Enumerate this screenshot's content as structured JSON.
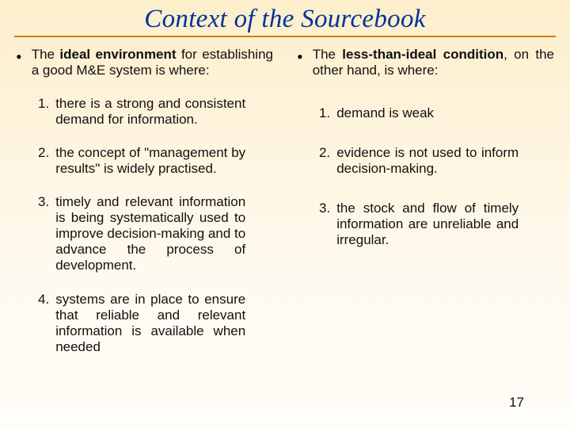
{
  "title": "Context of the Sourcebook",
  "pageNumber": "17",
  "left": {
    "lead_pre": "The ",
    "lead_bold": "ideal environment",
    "lead_post": " for establishing a good M&E system is where:",
    "items": [
      {
        "n": "1.",
        "text": "there is a strong and consistent demand for information."
      },
      {
        "n": "2.",
        "text": "the concept of \"management by results\" is widely practised."
      },
      {
        "n": "3.",
        "text": "timely and relevant information is being systematically used to improve decision-making and to advance the process of development."
      },
      {
        "n": "4.",
        "text": "systems are in place to ensure that reliable and relevant information is available when needed"
      }
    ]
  },
  "right": {
    "lead_pre": "The ",
    "lead_bold": "less-than-ideal condition",
    "lead_post": ", on the other hand, is where:",
    "items": [
      {
        "n": "1.",
        "text": "demand is weak"
      },
      {
        "n": "2.",
        "text": "evidence is not used to inform decision-making."
      },
      {
        "n": "3.",
        "text": "the stock and flow of timely information are unreliable and irregular."
      }
    ]
  }
}
